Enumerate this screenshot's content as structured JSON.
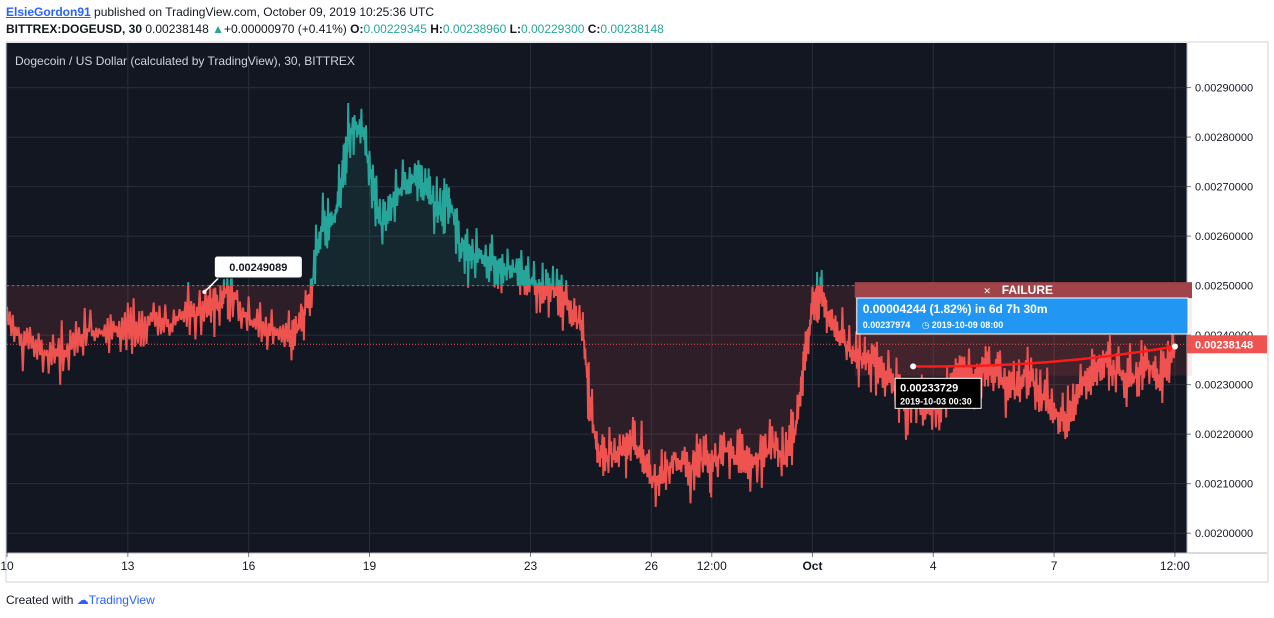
{
  "header": {
    "author": "ElsieGordon91",
    "published": " published on TradingView.com, October 09, 2019 10:25:36 UTC",
    "symbol": "BITTREX:DOGEUSD, 30",
    "last": "0.00238148",
    "change": "+0.00000970 (+0.41%)",
    "o_label": "O:",
    "o_value": "0.00229345",
    "h_label": "H:",
    "h_value": "0.00238960",
    "l_label": "L:",
    "l_value": "0.00229300",
    "c_label": "C:",
    "c_value": "0.00238148",
    "up_glyph": "▲"
  },
  "footer": {
    "prefix": "Created with ",
    "brand": "TradingView"
  },
  "colors": {
    "background": "#131722",
    "frame": "#cfd3dc",
    "bear": "#ef5350",
    "bull": "#26a69a",
    "grid": "#2a2e39",
    "axis_text": "#d1d4dc",
    "current_price_bg": "#ef5350",
    "info_box": "#2196f3",
    "failure_box": "#a0444a"
  },
  "chart_data": {
    "type": "line",
    "title": "Dogecoin / US Dollar (calculated by TradingView), 30, BITTREX",
    "xlabel": "",
    "ylabel": "",
    "ylim": [
      0.00196,
      0.00299
    ],
    "y_ticks": [
      "0.00290000",
      "0.00280000",
      "0.00270000",
      "0.00260000",
      "0.00250000",
      "0.00240000",
      "0.00230000",
      "0.00220000",
      "0.00210000",
      "0.00200000"
    ],
    "y_tick_values": [
      0.0029,
      0.0028,
      0.0027,
      0.0026,
      0.0025,
      0.0024,
      0.0023,
      0.0022,
      0.0021,
      0.002
    ],
    "x_ticks": [
      "10",
      "13",
      "16",
      "19",
      "23",
      "26",
      "12:00",
      "Oct",
      "4",
      "7",
      "12:00"
    ],
    "x_tick_days": [
      10,
      13,
      16,
      19,
      23,
      26,
      27.5,
      30,
      33,
      36,
      39
    ],
    "x_range_days": [
      10,
      39.3
    ],
    "baseline": 0.0025,
    "series": [
      {
        "x": [
          10,
          10.5,
          11,
          11.5,
          12,
          12.5,
          13,
          13.5,
          14,
          14.5,
          15,
          15.3,
          15.5,
          16,
          16.5,
          17,
          17.3,
          17.5,
          17.8,
          18.1,
          18.3,
          18.5,
          18.8,
          19,
          19.3,
          19.6,
          20,
          20.3,
          20.5,
          20.8,
          21,
          21.3,
          21.6,
          22,
          22.3,
          22.6,
          23,
          23.3,
          23.6,
          24,
          24.3,
          24.5,
          24.7,
          25,
          25.3,
          25.5,
          25.8,
          26,
          26.3,
          26.6,
          27,
          27.3,
          27.5,
          27.8,
          28.2,
          28.6,
          29,
          29.3,
          29.6,
          29.8,
          30,
          30.2,
          30.4,
          30.7,
          31,
          31.3,
          31.6,
          32,
          32.3,
          32.6,
          33,
          33.3,
          33.6,
          34,
          34.3,
          34.6,
          35,
          35.3,
          35.6,
          36,
          36.3,
          36.6,
          37,
          37.3,
          37.6,
          38,
          38.3,
          38.6,
          39
        ],
        "y": [
          0.00243,
          0.00239,
          0.00236,
          0.00237,
          0.00241,
          0.0024,
          0.00242,
          0.00243,
          0.00242,
          0.00244,
          0.00245,
          0.00246,
          0.0025,
          0.00243,
          0.00241,
          0.00239,
          0.00243,
          0.00247,
          0.00262,
          0.00263,
          0.0027,
          0.00281,
          0.00283,
          0.00273,
          0.00262,
          0.00267,
          0.00272,
          0.0027,
          0.00268,
          0.00265,
          0.00267,
          0.00257,
          0.00256,
          0.00255,
          0.00254,
          0.00253,
          0.00251,
          0.0025,
          0.00249,
          0.00245,
          0.00241,
          0.00224,
          0.00215,
          0.00216,
          0.00217,
          0.00219,
          0.00215,
          0.00211,
          0.00212,
          0.00215,
          0.00213,
          0.00215,
          0.00214,
          0.00217,
          0.00215,
          0.00214,
          0.00218,
          0.00215,
          0.00221,
          0.00237,
          0.00245,
          0.00249,
          0.00244,
          0.0024,
          0.00235,
          0.00236,
          0.00234,
          0.0023,
          0.00226,
          0.00226,
          0.00225,
          0.00227,
          0.00233,
          0.00231,
          0.00233,
          0.00232,
          0.00229,
          0.00233,
          0.00229,
          0.00225,
          0.00222,
          0.0023,
          0.00232,
          0.00235,
          0.00232,
          0.00231,
          0.00235,
          0.00231,
          0.00238
        ]
      }
    ],
    "annotations": {
      "high_label": "0.00249089",
      "failure_label": "FAILURE",
      "failure_icon": "x-icon",
      "measure_main": "0.00004244 (1.82%) in 6d 7h 30m",
      "measure_sub": "0.00237974",
      "measure_date": "2019-10-09  08:00",
      "clock_icon": "clock-icon",
      "point_value": "0.00233729",
      "point_date": "2019-10-03 00:30",
      "current_price": "0.00238148"
    }
  }
}
